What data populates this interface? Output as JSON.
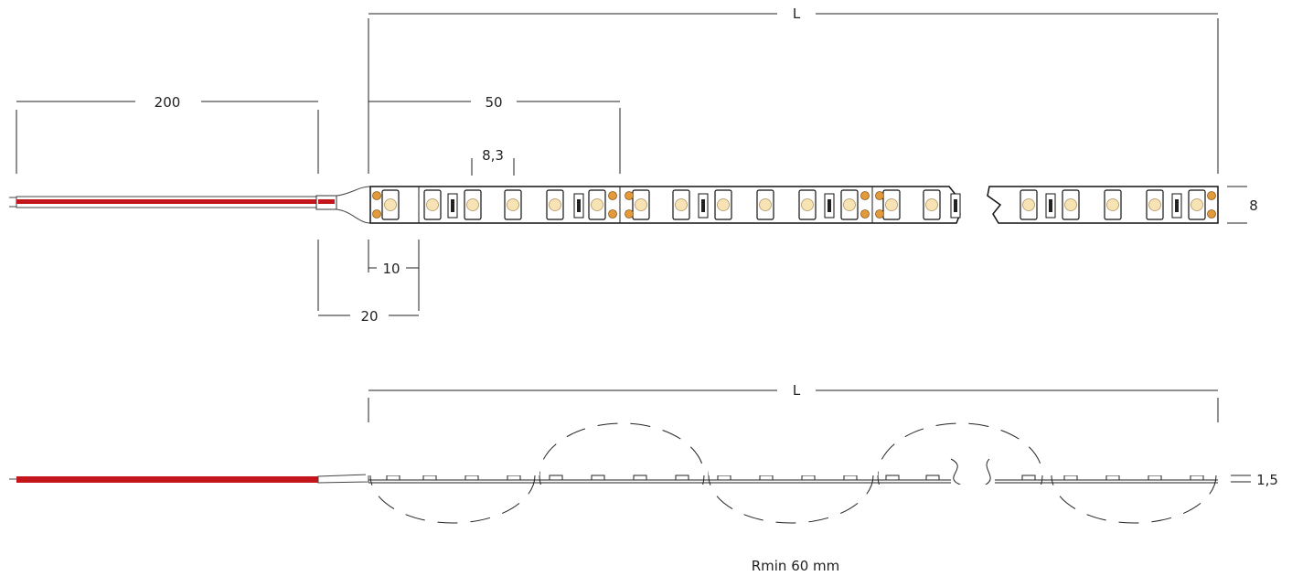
{
  "dimensions": {
    "length_top": "L",
    "cable_length": "200",
    "cut_unit": "50",
    "led_pitch": "8,3",
    "width": "8",
    "connector_10": "10",
    "connector_20": "20",
    "length_side": "L",
    "thickness": "1,5"
  },
  "note": "Rmin 60 mm"
}
